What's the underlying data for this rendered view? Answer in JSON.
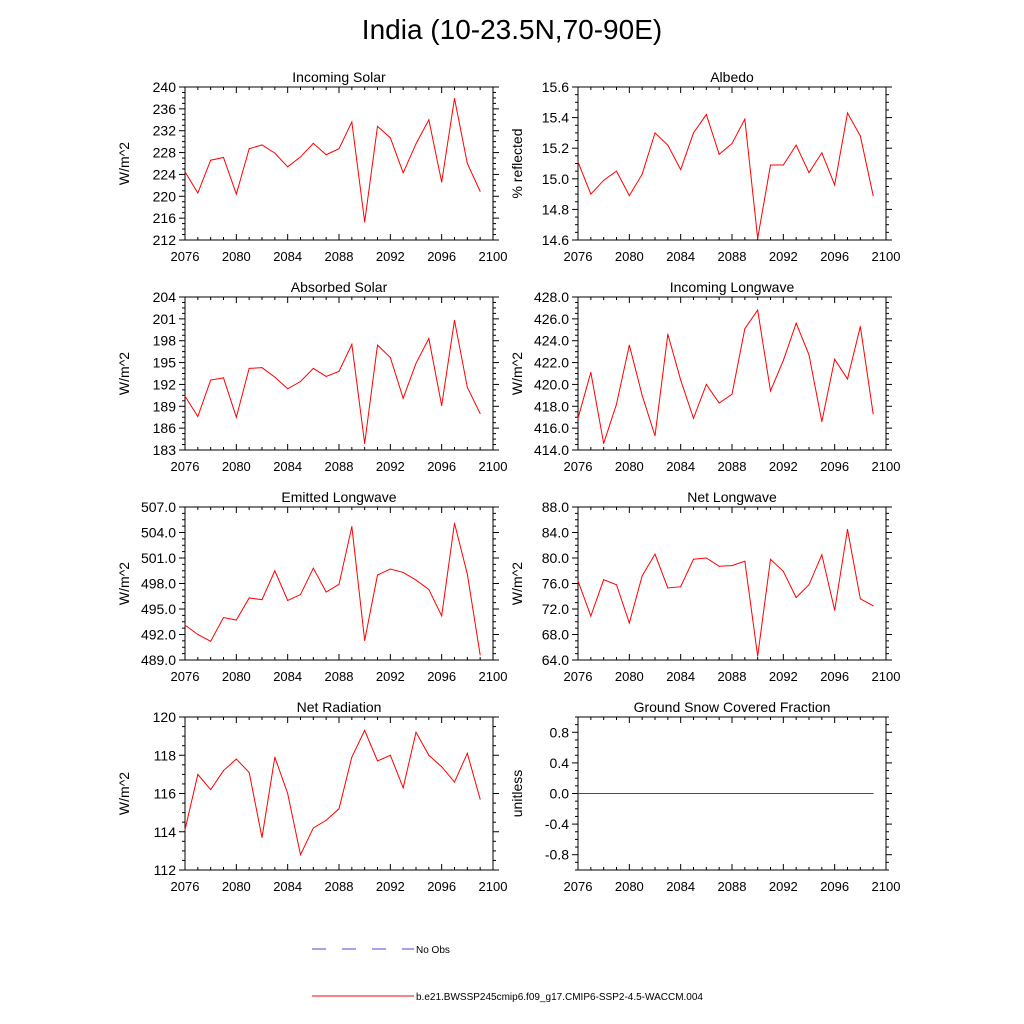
{
  "title": "India (10-23.5N,70-90E)",
  "legend": {
    "obs_label": "No Obs",
    "model_label": "b.e21.BWSSP245cmip6.f09_g17.CMIP6-SSP2-4.5-WACCM.004",
    "obs_color": "#4a4ad0",
    "model_color": "#ff0000"
  },
  "chart_data": [
    {
      "type": "line",
      "title": "Incoming Solar",
      "ylabel": "W/m^2",
      "xlim": [
        2076,
        2100
      ],
      "ylim": [
        212,
        240
      ],
      "xticks": [
        2076,
        2080,
        2084,
        2088,
        2092,
        2096,
        2100
      ],
      "xtick_labels": [
        "2076",
        "2080",
        "2084",
        "2088",
        "2092",
        "2096",
        "2100"
      ],
      "yticks": [
        212,
        216,
        220,
        224,
        228,
        232,
        236,
        240
      ],
      "ytick_labels": [
        "212",
        "216",
        "220",
        "224",
        "228",
        "232",
        "236",
        "240"
      ],
      "x": [
        2076,
        2077,
        2078,
        2079,
        2080,
        2081,
        2082,
        2083,
        2084,
        2085,
        2086,
        2087,
        2088,
        2089,
        2090,
        2091,
        2092,
        2093,
        2094,
        2095,
        2096,
        2097,
        2098,
        2099
      ],
      "values": [
        224.5,
        220.6,
        226.6,
        227.1,
        220.4,
        228.7,
        229.4,
        227.9,
        225.4,
        227.2,
        229.7,
        227.6,
        228.7,
        233.6,
        215.3,
        232.8,
        230.7,
        224.3,
        229.6,
        234.0,
        222.6,
        237.9,
        226.0,
        220.9
      ]
    },
    {
      "type": "line",
      "title": "Albedo",
      "ylabel": "% reflected",
      "xlim": [
        2076,
        2100
      ],
      "ylim": [
        14.6,
        15.6
      ],
      "xticks": [
        2076,
        2080,
        2084,
        2088,
        2092,
        2096,
        2100
      ],
      "xtick_labels": [
        "2076",
        "2080",
        "2084",
        "2088",
        "2092",
        "2096",
        "2100"
      ],
      "yticks": [
        14.6,
        14.8,
        15.0,
        15.2,
        15.4,
        15.6
      ],
      "ytick_labels": [
        "14.6",
        "14.8",
        "15.0",
        "15.2",
        "15.4",
        "15.6"
      ],
      "x": [
        2076,
        2077,
        2078,
        2079,
        2080,
        2081,
        2082,
        2083,
        2084,
        2085,
        2086,
        2087,
        2088,
        2089,
        2090,
        2091,
        2092,
        2093,
        2094,
        2095,
        2096,
        2097,
        2098,
        2099
      ],
      "values": [
        15.11,
        14.9,
        14.99,
        15.05,
        14.89,
        15.03,
        15.3,
        15.22,
        15.06,
        15.3,
        15.42,
        15.16,
        15.23,
        15.39,
        14.61,
        15.09,
        15.09,
        15.22,
        15.04,
        15.17,
        14.96,
        15.43,
        15.28,
        14.89
      ]
    },
    {
      "type": "line",
      "title": "Absorbed Solar",
      "ylabel": "W/m^2",
      "xlim": [
        2076,
        2100
      ],
      "ylim": [
        183,
        204
      ],
      "xticks": [
        2076,
        2080,
        2084,
        2088,
        2092,
        2096,
        2100
      ],
      "xtick_labels": [
        "2076",
        "2080",
        "2084",
        "2088",
        "2092",
        "2096",
        "2100"
      ],
      "yticks": [
        183,
        186,
        189,
        192,
        195,
        198,
        201,
        204
      ],
      "ytick_labels": [
        "183",
        "186",
        "189",
        "192",
        "195",
        "198",
        "201",
        "204"
      ],
      "x": [
        2076,
        2077,
        2078,
        2079,
        2080,
        2081,
        2082,
        2083,
        2084,
        2085,
        2086,
        2087,
        2088,
        2089,
        2090,
        2091,
        2092,
        2093,
        2094,
        2095,
        2096,
        2097,
        2098,
        2099
      ],
      "values": [
        190.4,
        187.6,
        192.6,
        192.9,
        187.5,
        194.2,
        194.3,
        193.0,
        191.4,
        192.4,
        194.2,
        193.1,
        193.8,
        197.5,
        183.9,
        197.4,
        195.7,
        190.1,
        194.9,
        198.3,
        189.1,
        200.8,
        191.6,
        188.0
      ]
    },
    {
      "type": "line",
      "title": "Incoming Longwave",
      "ylabel": "W/m^2",
      "xlim": [
        2076,
        2100
      ],
      "ylim": [
        414,
        428
      ],
      "xticks": [
        2076,
        2080,
        2084,
        2088,
        2092,
        2096,
        2100
      ],
      "xtick_labels": [
        "2076",
        "2080",
        "2084",
        "2088",
        "2092",
        "2096",
        "2100"
      ],
      "yticks": [
        414,
        416,
        418,
        420,
        422,
        424,
        426,
        428
      ],
      "ytick_labels": [
        "414.0",
        "416.0",
        "418.0",
        "420.0",
        "422.0",
        "424.0",
        "426.0",
        "428.0"
      ],
      "x": [
        2076,
        2077,
        2078,
        2079,
        2080,
        2081,
        2082,
        2083,
        2084,
        2085,
        2086,
        2087,
        2088,
        2089,
        2090,
        2091,
        2092,
        2093,
        2094,
        2095,
        2096,
        2097,
        2098,
        2099
      ],
      "values": [
        416.9,
        421.1,
        414.6,
        418.2,
        423.6,
        419.0,
        415.3,
        424.6,
        420.4,
        416.9,
        420.0,
        418.3,
        419.1,
        425.1,
        426.8,
        419.4,
        422.2,
        425.6,
        422.7,
        416.6,
        422.3,
        420.5,
        425.3,
        417.3
      ]
    },
    {
      "type": "line",
      "title": "Emitted Longwave",
      "ylabel": "W/m^2",
      "xlim": [
        2076,
        2100
      ],
      "ylim": [
        489,
        507
      ],
      "xticks": [
        2076,
        2080,
        2084,
        2088,
        2092,
        2096,
        2100
      ],
      "xtick_labels": [
        "2076",
        "2080",
        "2084",
        "2088",
        "2092",
        "2096",
        "2100"
      ],
      "yticks": [
        489,
        492,
        495,
        498,
        501,
        504,
        507
      ],
      "ytick_labels": [
        "489.0",
        "492.0",
        "495.0",
        "498.0",
        "501.0",
        "504.0",
        "507.0"
      ],
      "x": [
        2076,
        2077,
        2078,
        2079,
        2080,
        2081,
        2082,
        2083,
        2084,
        2085,
        2086,
        2087,
        2088,
        2089,
        2090,
        2091,
        2092,
        2093,
        2094,
        2095,
        2096,
        2097,
        2098,
        2099
      ],
      "values": [
        493.1,
        492.0,
        491.2,
        494.0,
        493.7,
        496.3,
        496.1,
        499.5,
        496.0,
        496.7,
        499.8,
        497.0,
        497.9,
        504.7,
        491.3,
        499.0,
        499.7,
        499.3,
        498.4,
        497.3,
        494.2,
        505.1,
        499.1,
        489.6
      ]
    },
    {
      "type": "line",
      "title": "Net Longwave",
      "ylabel": "W/m^2",
      "xlim": [
        2076,
        2100
      ],
      "ylim": [
        64,
        88
      ],
      "xticks": [
        2076,
        2080,
        2084,
        2088,
        2092,
        2096,
        2100
      ],
      "xtick_labels": [
        "2076",
        "2080",
        "2084",
        "2088",
        "2092",
        "2096",
        "2100"
      ],
      "yticks": [
        64,
        68,
        72,
        76,
        80,
        84,
        88
      ],
      "ytick_labels": [
        "64.0",
        "68.0",
        "72.0",
        "76.0",
        "80.0",
        "84.0",
        "88.0"
      ],
      "x": [
        2076,
        2077,
        2078,
        2079,
        2080,
        2081,
        2082,
        2083,
        2084,
        2085,
        2086,
        2087,
        2088,
        2089,
        2090,
        2091,
        2092,
        2093,
        2094,
        2095,
        2096,
        2097,
        2098,
        2099
      ],
      "values": [
        76.4,
        70.9,
        76.6,
        75.8,
        69.8,
        77.2,
        80.6,
        75.3,
        75.5,
        79.8,
        80.0,
        78.7,
        78.8,
        79.5,
        64.6,
        79.8,
        77.9,
        73.8,
        75.8,
        80.5,
        71.8,
        84.5,
        73.6,
        72.5
      ]
    },
    {
      "type": "line",
      "title": "Net Radiation",
      "ylabel": "W/m^2",
      "xlim": [
        2076,
        2100
      ],
      "ylim": [
        112,
        120
      ],
      "xticks": [
        2076,
        2080,
        2084,
        2088,
        2092,
        2096,
        2100
      ],
      "xtick_labels": [
        "2076",
        "2080",
        "2084",
        "2088",
        "2092",
        "2096",
        "2100"
      ],
      "yticks": [
        112,
        114,
        116,
        118,
        120
      ],
      "ytick_labels": [
        "112",
        "114",
        "116",
        "118",
        "120"
      ],
      "x": [
        2076,
        2077,
        2078,
        2079,
        2080,
        2081,
        2082,
        2083,
        2084,
        2085,
        2086,
        2087,
        2088,
        2089,
        2090,
        2091,
        2092,
        2093,
        2094,
        2095,
        2096,
        2097,
        2098,
        2099
      ],
      "values": [
        114.1,
        117.0,
        116.2,
        117.2,
        117.8,
        117.1,
        113.7,
        117.9,
        116.0,
        112.8,
        114.2,
        114.6,
        115.2,
        117.9,
        119.3,
        117.7,
        118.0,
        116.3,
        119.2,
        118.0,
        117.4,
        116.6,
        118.1,
        115.7
      ]
    },
    {
      "type": "line",
      "title": "Ground Snow Covered Fraction",
      "ylabel": "unitless",
      "xlim": [
        2076,
        2100
      ],
      "ylim": [
        -1.0,
        1.0
      ],
      "xticks": [
        2076,
        2080,
        2084,
        2088,
        2092,
        2096,
        2100
      ],
      "xtick_labels": [
        "2076",
        "2080",
        "2084",
        "2088",
        "2092",
        "2096",
        "2100"
      ],
      "yticks": [
        -0.8,
        -0.4,
        0.0,
        0.4,
        0.8
      ],
      "ytick_labels": [
        "-0.8",
        "-0.4",
        "0.0",
        "0.4",
        "0.8"
      ],
      "x": [
        2076,
        2077,
        2078,
        2079,
        2080,
        2081,
        2082,
        2083,
        2084,
        2085,
        2086,
        2087,
        2088,
        2089,
        2090,
        2091,
        2092,
        2093,
        2094,
        2095,
        2096,
        2097,
        2098,
        2099
      ],
      "values": [
        0,
        0,
        0,
        0,
        0,
        0,
        0,
        0,
        0,
        0,
        0,
        0,
        0,
        0,
        0,
        0,
        0,
        0,
        0,
        0,
        0,
        0,
        0,
        0
      ]
    }
  ]
}
